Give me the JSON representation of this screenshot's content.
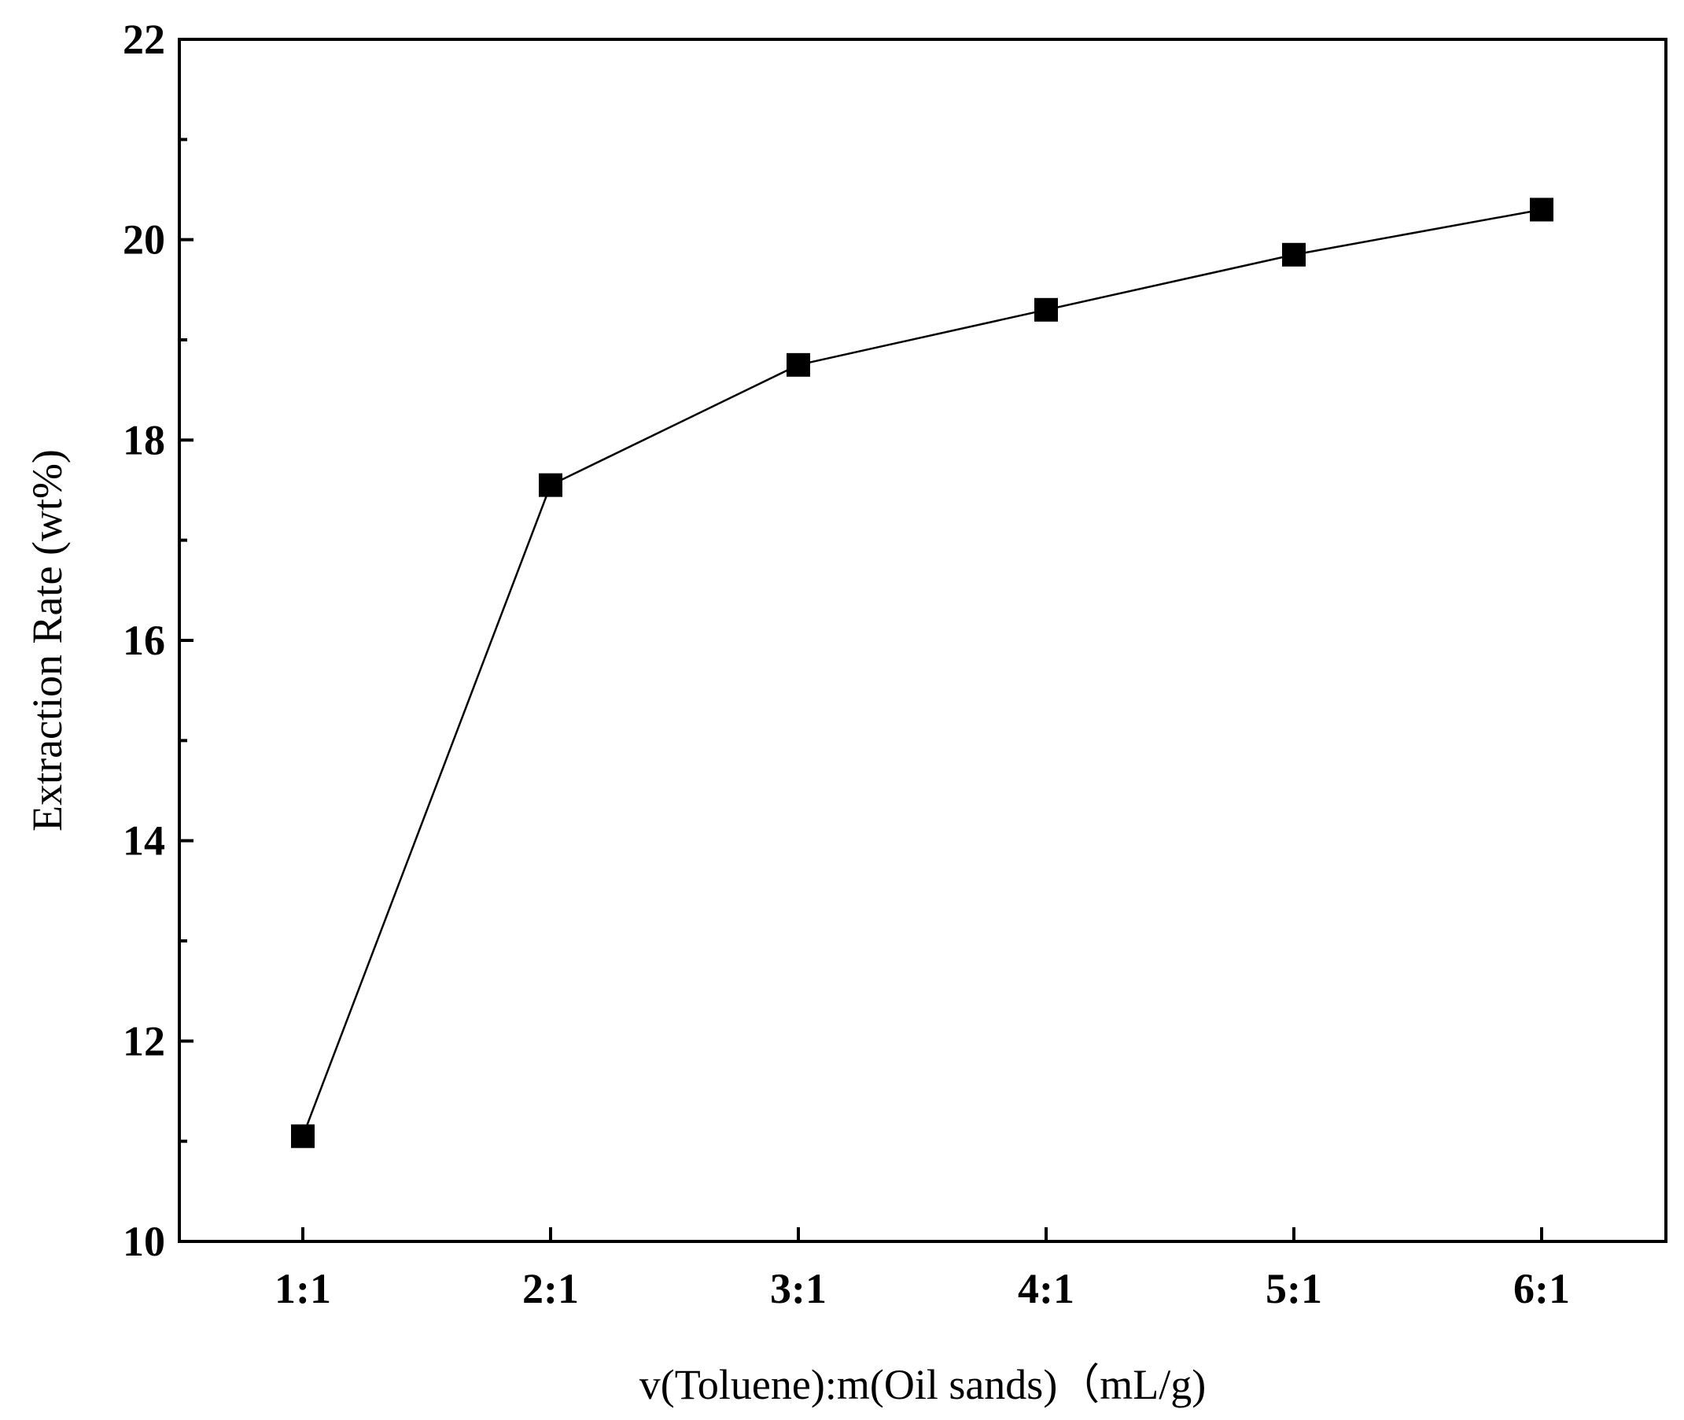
{
  "chart_data": {
    "type": "line",
    "title": "",
    "xlabel": "v(Toluene):m(Oil sands)（mL/g)",
    "ylabel": "Extraction Rate (wt%)",
    "categories": [
      "1:1",
      "2:1",
      "3:1",
      "4:1",
      "5:1",
      "6:1"
    ],
    "series": [
      {
        "values": [
          11.05,
          17.55,
          18.75,
          19.3,
          19.85,
          20.3
        ]
      }
    ],
    "ylim": [
      10,
      22
    ],
    "yticks": [
      10,
      12,
      14,
      16,
      18,
      20,
      22
    ],
    "yminor_ticks": [
      11,
      13,
      15,
      17,
      19,
      21
    ],
    "marker": "square",
    "line_color": "#000000",
    "marker_color": "#000000",
    "grid": false,
    "legend": "none"
  }
}
